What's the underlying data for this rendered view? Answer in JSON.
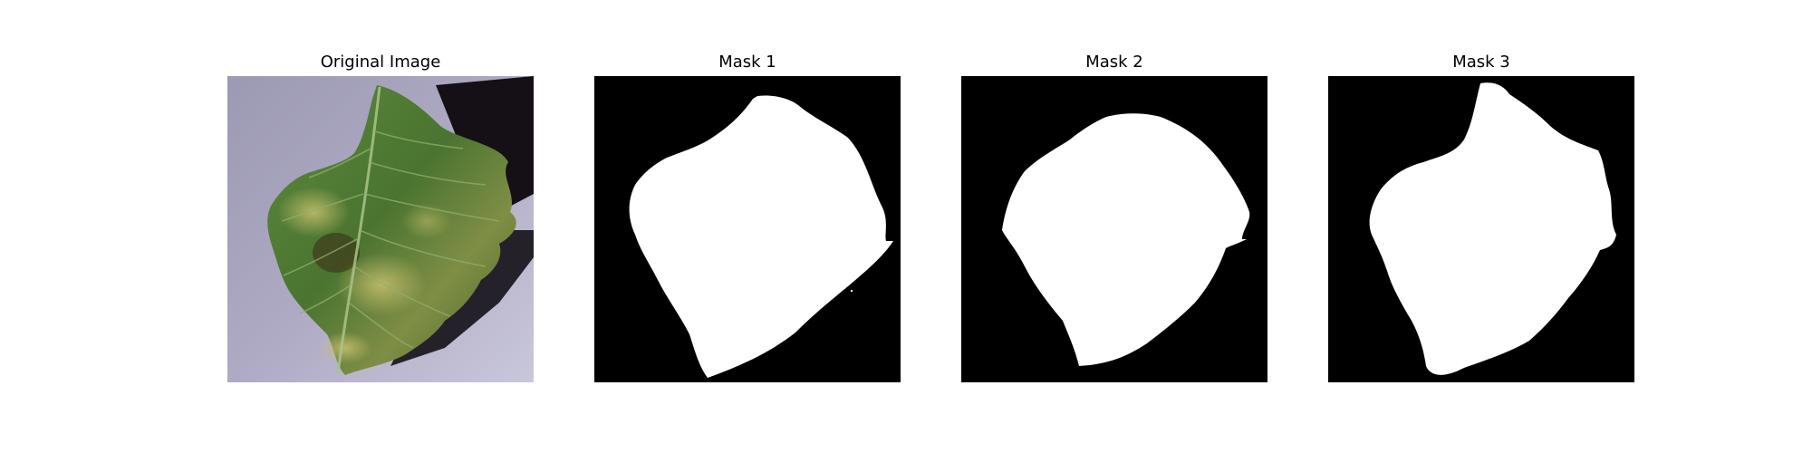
{
  "panels": [
    {
      "title": "Original Image",
      "kind": "photo",
      "subject": "leaf-photo"
    },
    {
      "title": "Mask 1",
      "kind": "mask",
      "foreground": "#ffffff",
      "background": "#000000"
    },
    {
      "title": "Mask 2",
      "kind": "mask",
      "foreground": "#ffffff",
      "background": "#000000"
    },
    {
      "title": "Mask 3",
      "kind": "mask",
      "foreground": "#ffffff",
      "background": "#000000"
    }
  ],
  "colors": {
    "page_background": "#ffffff",
    "mask_foreground": "#ffffff",
    "mask_background": "#000000",
    "leaf_green": "#4f7a35",
    "photo_background": "#a7a4be"
  }
}
